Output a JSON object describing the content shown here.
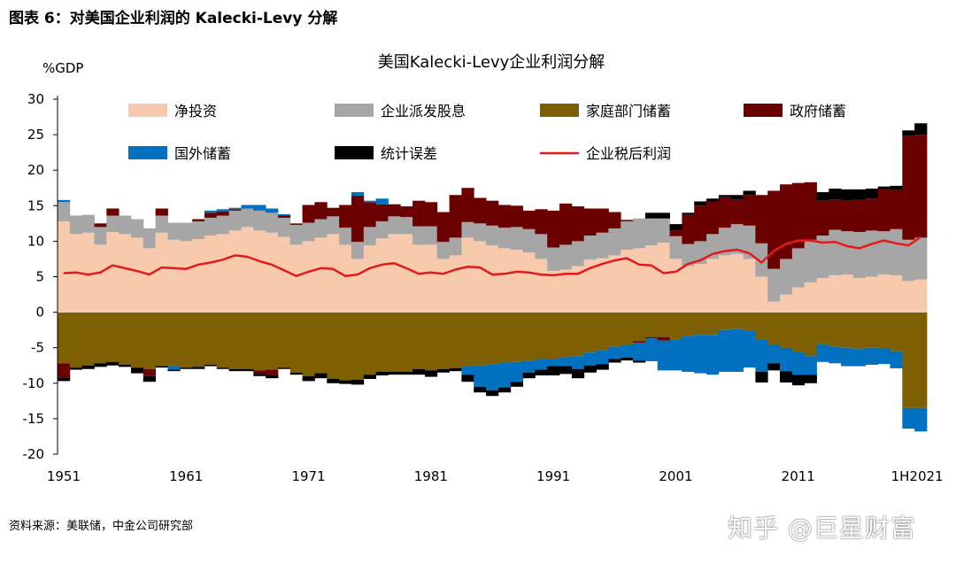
{
  "page": {
    "title": "图表 6：对美国企业利润的 Kalecki-Levy 分解",
    "source": "资料来源：美联储，中金公司研究部",
    "watermark": "知乎 @巨星财富"
  },
  "colors": {
    "net_investment": "#F7C9AD",
    "dividends": "#A6A6A6",
    "household_saving": "#7F6000",
    "government_saving": "#6B0000",
    "foreign_saving": "#0070C0",
    "statistical_discrepancy": "#000000",
    "after_tax_profits": "#E31A1C"
  },
  "chart_data": {
    "type": "bar",
    "title": "美国Kalecki-Levy企业利润分解",
    "ylabel": "%GDP",
    "ylim": [
      -20,
      30
    ],
    "yticks": [
      30,
      25,
      20,
      15,
      10,
      5,
      0,
      -5,
      -10,
      -15,
      -20
    ],
    "xtick_labels": [
      "1951",
      "1961",
      "1971",
      "1981",
      "1991",
      "2001",
      "2011",
      "1H2021"
    ],
    "xtick_index": [
      0,
      10,
      20,
      30,
      40,
      50,
      60,
      70
    ],
    "categories": [
      "1951",
      "1952",
      "1953",
      "1954",
      "1955",
      "1956",
      "1957",
      "1958",
      "1959",
      "1960",
      "1961",
      "1962",
      "1963",
      "1964",
      "1965",
      "1966",
      "1967",
      "1968",
      "1969",
      "1970",
      "1971",
      "1972",
      "1973",
      "1974",
      "1975",
      "1976",
      "1977",
      "1978",
      "1979",
      "1980",
      "1981",
      "1982",
      "1983",
      "1984",
      "1985",
      "1986",
      "1987",
      "1988",
      "1989",
      "1990",
      "1991",
      "1992",
      "1993",
      "1994",
      "1995",
      "1996",
      "1997",
      "1998",
      "1999",
      "2000",
      "2001",
      "2002",
      "2003",
      "2004",
      "2005",
      "2006",
      "2007",
      "2008",
      "2009",
      "2010",
      "2011",
      "2012",
      "2013",
      "2014",
      "2015",
      "2016",
      "2017",
      "2018",
      "2019",
      "2020",
      "1H2021"
    ],
    "legend": [
      "净投资",
      "企业派发股息",
      "家庭部门储蓄",
      "政府储蓄",
      "国外储蓄",
      "统计误差",
      "企业税后利润"
    ],
    "series": [
      {
        "name": "净投资",
        "kind": "stack",
        "values": [
          12.8,
          11,
          11.2,
          9.5,
          11.3,
          11,
          10.5,
          9,
          11.2,
          10.2,
          10,
          10.3,
          10.8,
          11,
          11.5,
          12,
          11.5,
          11.2,
          10.6,
          9.5,
          10,
          10.5,
          11,
          9.5,
          7.5,
          9.4,
          10.4,
          11,
          11,
          9.5,
          9.5,
          7.5,
          8,
          10.5,
          10,
          9.4,
          9,
          8.8,
          8.4,
          7.5,
          5.8,
          6,
          6.5,
          7.4,
          7.6,
          8,
          8.8,
          9,
          9.4,
          9.8,
          7.5,
          6.5,
          6.8,
          7.5,
          8,
          8.2,
          7.5,
          5,
          1.5,
          2.5,
          3.5,
          4.2,
          4.8,
          5.2,
          5.3,
          4.8,
          5,
          5.3,
          5.2,
          4.4,
          4.6
        ]
      },
      {
        "name": "企业派发股息",
        "kind": "stack",
        "values": [
          2.7,
          2.6,
          2.5,
          2.5,
          2.3,
          2.6,
          2.6,
          2.8,
          2.4,
          2.4,
          2.6,
          2.5,
          2.5,
          2.6,
          2.8,
          2.6,
          2.8,
          2.8,
          2.7,
          2.8,
          2.6,
          2.6,
          2.5,
          2.4,
          2.4,
          2.6,
          2.4,
          2.5,
          2.4,
          2.6,
          2.6,
          2.4,
          2.5,
          2.2,
          2.5,
          2.8,
          2.9,
          3.2,
          3.3,
          3.5,
          3.3,
          3.5,
          3.5,
          3.4,
          3.6,
          3.8,
          4,
          4.2,
          3.8,
          3.4,
          3.2,
          3.1,
          3.2,
          3.5,
          3.9,
          4.2,
          4.7,
          4.7,
          4.6,
          5,
          5.5,
          6,
          6,
          6.4,
          6.1,
          6.5,
          6.5,
          6.1,
          6.5,
          5.8,
          5.9
        ]
      },
      {
        "name": "家庭部门储蓄",
        "kind": "stack",
        "values": [
          -7.2,
          -7.8,
          -7.5,
          -7.2,
          -7,
          -7.4,
          -7.8,
          -8,
          -7.6,
          -7.6,
          -7.8,
          -7.7,
          -7.4,
          -7.8,
          -8,
          -8,
          -8.2,
          -8.1,
          -7.8,
          -8.5,
          -9,
          -8.6,
          -9.4,
          -9.6,
          -9.5,
          -8.8,
          -8.4,
          -8.4,
          -8.4,
          -8,
          -8.2,
          -8,
          -7.9,
          -7.6,
          -7.5,
          -7.4,
          -7.1,
          -7,
          -6.8,
          -6.6,
          -6.6,
          -6.4,
          -6.2,
          -5.7,
          -5.3,
          -4.9,
          -4.6,
          -4.1,
          -3.5,
          -3.5,
          -3.8,
          -3.4,
          -3.2,
          -3.2,
          -2.5,
          -2.4,
          -2.6,
          -3.8,
          -4.6,
          -5.1,
          -5.6,
          -6.2,
          -4.5,
          -4.8,
          -5,
          -5.2,
          -5,
          -5.1,
          -5.5,
          -13.5,
          -13.5
        ]
      },
      {
        "name": "政府储蓄",
        "kind": "stack",
        "values": [
          -2,
          0,
          0,
          0.5,
          1,
          0,
          0,
          -1,
          1,
          0,
          0,
          0.3,
          0.7,
          0.6,
          0.2,
          0,
          -0.5,
          -0.8,
          0.3,
          0.2,
          2.5,
          2.4,
          1.2,
          3.2,
          6.5,
          3.5,
          2.4,
          1.7,
          1.5,
          3.6,
          3.4,
          4.2,
          6,
          4.8,
          3.6,
          3.5,
          3.2,
          3,
          2.6,
          3.5,
          5.2,
          5.8,
          4.9,
          3.8,
          3.4,
          2.3,
          0.2,
          -0.2,
          -0.2,
          -0.5,
          0.8,
          4.1,
          5,
          4.6,
          4.3,
          3.5,
          4.3,
          6.8,
          11,
          10.5,
          9.2,
          8.1,
          4.9,
          4.3,
          4.3,
          4.5,
          4.5,
          5.9,
          5.5,
          14.6,
          14.5
        ]
      },
      {
        "name": "国外储蓄",
        "kind": "stack",
        "values": [
          0.3,
          0,
          0,
          0,
          0,
          0,
          0,
          0,
          0,
          -0.5,
          0,
          0,
          0.3,
          0.3,
          0.2,
          0.5,
          0.8,
          0.6,
          0.2,
          0,
          0,
          0,
          0,
          0,
          0.5,
          0.2,
          0.8,
          0,
          0,
          0,
          0,
          0,
          0,
          -1.2,
          -3,
          -3.6,
          -3.5,
          -2.8,
          -1.7,
          -1.5,
          -1,
          -1.2,
          -1.8,
          -1.8,
          -2,
          -1.7,
          -1.8,
          -2.5,
          -3.2,
          -4.2,
          -4.4,
          -5,
          -5.4,
          -5.6,
          -5.9,
          -6,
          -5.2,
          -4.6,
          -2.6,
          -3.2,
          -3.2,
          -2.6,
          -2.5,
          -2.4,
          -2.6,
          -2.4,
          -2.4,
          -2.2,
          -2.4,
          -2.9,
          -3.3
        ]
      },
      {
        "name": "统计误差",
        "kind": "stack",
        "values": [
          -0.5,
          -0.3,
          -0.5,
          -0.5,
          -0.5,
          -0.3,
          -0.8,
          -0.8,
          -0.2,
          -0.2,
          -0.2,
          -0.3,
          -0.2,
          -0.2,
          -0.3,
          -0.3,
          -0.3,
          -0.4,
          -0.2,
          -0.3,
          -0.7,
          -0.7,
          -0.6,
          -0.5,
          -0.7,
          -0.6,
          -0.5,
          -0.4,
          -0.4,
          -0.8,
          -0.9,
          -0.5,
          -0.4,
          -1,
          -0.8,
          -0.8,
          -0.7,
          -0.7,
          -0.8,
          -0.8,
          -1.3,
          -1.1,
          -1.3,
          -1,
          -0.8,
          -0.5,
          -0.4,
          -0.3,
          0.8,
          0.8,
          0.9,
          0.3,
          0.6,
          0.4,
          0.3,
          0.6,
          0.6,
          -1.5,
          -1,
          -1.6,
          -1.5,
          -1.2,
          1.2,
          1.5,
          1.6,
          1.5,
          1.4,
          0.4,
          0.6,
          0.8,
          1.6
        ]
      },
      {
        "name": "企业税后利润",
        "kind": "line",
        "values": [
          5.5,
          5.6,
          5.3,
          5.6,
          6.6,
          6.2,
          5.8,
          5.3,
          6.3,
          6.2,
          6.1,
          6.7,
          7,
          7.4,
          8,
          7.8,
          7.2,
          6.7,
          5.9,
          5.1,
          5.7,
          6.2,
          6.1,
          5.1,
          5.3,
          6.2,
          6.7,
          6.9,
          6.2,
          5.4,
          5.6,
          5.4,
          6,
          6.4,
          6.3,
          5.3,
          5.4,
          5.7,
          5.6,
          5.3,
          5.2,
          5.4,
          5.4,
          6.2,
          6.8,
          7.3,
          7.6,
          6.7,
          6.6,
          5.5,
          5.7,
          6.8,
          7.3,
          8.2,
          8.6,
          8.8,
          8.3,
          7,
          8.6,
          9.6,
          10.1,
          10.1,
          9.8,
          9.9,
          9.3,
          9,
          9.6,
          10.1,
          9.7,
          9.4,
          10.6
        ]
      }
    ]
  }
}
